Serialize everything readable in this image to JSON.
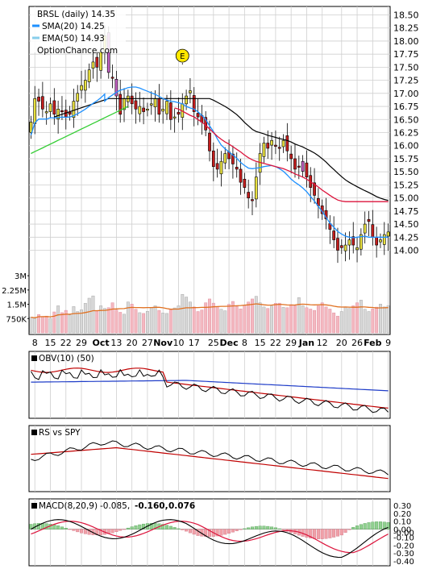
{
  "header": {
    "title": "BRSL (daily) 14.35",
    "legend": [
      {
        "label": "SMA(20) 14.25",
        "color": "#1e90ff"
      },
      {
        "label": "EMA(50) 14.93",
        "color": "#87ceeb"
      }
    ],
    "source": "OptionChance.com"
  },
  "colors": {
    "up_candle": "#e8e040",
    "down_candle": "#c41e1e",
    "purple_candle": "#c060c0",
    "sma20": "#1e90ff",
    "ema50_price": "#dc143c",
    "ema50_legend": "#87ceeb",
    "long_ma": "#000000",
    "green_ma": "#32cd32",
    "volume_up": "#d8d8d8",
    "volume_down": "#f4b8c0",
    "volume_ma": "#e07020",
    "obv": "#000000",
    "obv_ma": "#c00000",
    "obv_signal": "#1e3cc8",
    "macd_line": "#000000",
    "macd_signal": "#dc143c",
    "hist_pos": "#90d090",
    "hist_neg": "#f0a0a8"
  },
  "chart_data": [
    {
      "type": "candlestick",
      "title": "BRSL (daily) 14.35",
      "ylim": [
        13.7,
        18.6
      ],
      "price_ticks": [
        "18.50",
        "18.25",
        "18.00",
        "17.75",
        "17.50",
        "17.25",
        "17.00",
        "16.75",
        "16.50",
        "16.25",
        "16.00",
        "15.75",
        "15.50",
        "15.25",
        "15.00",
        "14.75",
        "14.50",
        "14.25",
        "14.00"
      ],
      "event_marker": "E",
      "close": [
        16.45,
        16.9,
        16.85,
        16.7,
        16.65,
        16.8,
        16.6,
        16.7,
        16.65,
        16.55,
        16.6,
        16.85,
        17.0,
        17.15,
        17.25,
        17.45,
        17.6,
        17.5,
        17.8,
        18.1,
        17.4,
        17.3,
        16.95,
        16.6,
        16.9,
        16.95,
        16.8,
        16.7,
        16.75,
        16.65,
        16.7,
        16.8,
        16.9,
        16.6,
        16.7,
        16.85,
        16.5,
        16.55,
        16.6,
        16.8,
        16.95,
        17.05,
        16.65,
        16.55,
        16.45,
        16.3,
        15.9,
        15.6,
        15.55,
        15.7,
        15.85,
        15.75,
        15.65,
        15.55,
        15.3,
        15.2,
        15.0,
        14.95,
        15.4,
        15.85,
        16.05,
        15.95,
        16.1,
        16.0,
        15.95,
        16.1,
        15.9,
        15.75,
        15.55,
        15.6,
        15.7,
        15.4,
        15.2,
        15.05,
        14.85,
        14.7,
        14.6,
        14.4,
        14.2,
        14.0,
        14.05,
        14.1,
        14.2,
        14.1,
        14.05,
        14.3,
        14.5,
        14.55,
        14.25,
        14.1,
        14.2,
        14.3,
        14.35
      ],
      "sma20": [
        null,
        null,
        null,
        null,
        null,
        null,
        null,
        null,
        null,
        null,
        null,
        null,
        null,
        null,
        null,
        null,
        null,
        null,
        null,
        16.85,
        16.92,
        16.97,
        17.02,
        17.06,
        17.08,
        17.11,
        17.12,
        17.12,
        17.1,
        17.07,
        17.04,
        17.01,
        16.98,
        16.94,
        16.9,
        16.87,
        16.85,
        16.84,
        16.82,
        16.8,
        16.75,
        16.72,
        16.7,
        16.65,
        16.58,
        16.5,
        16.38,
        16.27,
        16.13,
        16.01,
        15.94,
        15.88,
        15.82,
        15.76,
        15.68,
        15.62,
        15.57,
        15.56,
        15.57,
        15.58,
        15.6,
        15.61,
        15.62,
        15.6,
        15.56,
        15.51,
        15.44,
        15.36,
        15.3,
        15.25,
        15.19,
        15.12,
        15.03,
        14.94,
        14.84,
        14.74,
        14.63,
        14.52,
        14.44,
        14.36,
        14.31,
        14.27,
        14.25,
        14.24,
        14.25,
        14.26,
        14.27,
        14.25,
        14.25,
        14.25,
        14.25,
        14.25,
        14.25
      ],
      "ema50_red": [
        null,
        null,
        null,
        null,
        null,
        null,
        null,
        null,
        null,
        null,
        null,
        null,
        null,
        null,
        null,
        null,
        null,
        null,
        null,
        null,
        null,
        null,
        null,
        null,
        null,
        null,
        null,
        null,
        null,
        null,
        null,
        null,
        null,
        null,
        null,
        null,
        null,
        16.72,
        16.7,
        16.66,
        16.62,
        16.58,
        16.55,
        16.5,
        16.45,
        16.39,
        16.32,
        16.25,
        16.18,
        16.12,
        16.07,
        16.03,
        15.98,
        15.93,
        15.88,
        15.82,
        15.77,
        15.73,
        15.7,
        15.68,
        15.66,
        15.64,
        15.62,
        15.6,
        15.58,
        15.56,
        15.53,
        15.5,
        15.46,
        15.43,
        15.4,
        15.36,
        15.31,
        15.26,
        15.21,
        15.15,
        15.1,
        15.05,
        15.0,
        14.96,
        14.94,
        14.93,
        14.93,
        14.93,
        14.93,
        14.93,
        14.93,
        14.93,
        14.93,
        14.93,
        14.93,
        14.93,
        14.93
      ],
      "long_black": [
        null,
        null,
        null,
        null,
        null,
        null,
        null,
        null,
        null,
        null,
        null,
        null,
        null,
        null,
        null,
        null,
        null,
        null,
        null,
        null,
        null,
        null,
        null,
        null,
        null,
        null,
        null,
        null,
        null,
        null,
        null,
        null,
        null,
        null,
        null,
        null,
        null,
        null,
        null,
        null,
        null,
        null,
        null,
        null,
        null,
        null,
        null,
        null,
        null,
        null,
        null,
        null,
        null,
        null,
        null,
        null,
        null,
        null,
        null,
        null,
        null,
        null,
        null,
        null,
        null,
        null,
        null,
        null,
        null,
        null,
        null,
        null,
        null,
        null,
        null,
        null,
        null,
        null,
        null,
        null,
        null,
        null,
        null,
        null,
        null,
        null,
        null,
        null,
        null,
        null,
        null,
        null,
        null
      ],
      "volume_ticks": [
        "3M",
        "2.25M",
        "1.5M",
        "750K"
      ],
      "volume_k": [
        820,
        760,
        960,
        860,
        880,
        760,
        1100,
        1420,
        1060,
        1180,
        940,
        1380,
        1120,
        1210,
        1550,
        1820,
        1940,
        1150,
        1420,
        1280,
        1320,
        1580,
        1200,
        1080,
        980,
        1620,
        1510,
        1240,
        1060,
        1020,
        1130,
        1320,
        1420,
        1180,
        1040,
        1020,
        1260,
        1310,
        1420,
        2020,
        1880,
        1620,
        1360,
        1120,
        1200,
        1580,
        1780,
        1560,
        1360,
        1240,
        1160,
        1500,
        1650,
        1380,
        1260,
        1450,
        1620,
        1780,
        1920,
        1580,
        1360,
        1280,
        1410,
        1550,
        1560,
        1340,
        1320,
        1480,
        1430,
        1850,
        1420,
        1320,
        1250,
        1180,
        1420,
        1580,
        1360,
        1250,
        1050,
        880,
        1120,
        1360,
        1280,
        1420,
        1580,
        1720,
        1240,
        1120,
        1260,
        1350,
        1510,
        1360,
        1420
      ]
    }
  ],
  "x_axis": {
    "labels": [
      {
        "text": "8",
        "bold": false
      },
      {
        "text": "15",
        "bold": false
      },
      {
        "text": "22",
        "bold": false
      },
      {
        "text": "29",
        "bold": false
      },
      {
        "text": "Oct",
        "bold": true
      },
      {
        "text": "13",
        "bold": false
      },
      {
        "text": "20",
        "bold": false
      },
      {
        "text": "27",
        "bold": false
      },
      {
        "text": "Nov",
        "bold": true
      },
      {
        "text": "10",
        "bold": false
      },
      {
        "text": "17",
        "bold": false
      },
      {
        "text": "25",
        "bold": false
      },
      {
        "text": "Dec",
        "bold": true
      },
      {
        "text": "8",
        "bold": false
      },
      {
        "text": "15",
        "bold": false
      },
      {
        "text": "22",
        "bold": false
      },
      {
        "text": "29",
        "bold": false
      },
      {
        "text": "Jan",
        "bold": true
      },
      {
        "text": "12",
        "bold": false
      },
      {
        "text": "20",
        "bold": false
      },
      {
        "text": "26",
        "bold": false
      },
      {
        "text": "Feb",
        "bold": true
      },
      {
        "text": "9",
        "bold": false
      }
    ]
  },
  "obv_panel": {
    "label": "OBV(10) (50)"
  },
  "rs_panel": {
    "label": "RS vs SPY"
  },
  "macd_panel": {
    "label": "MACD(8,20,9)",
    "macd_value": "-0.085,",
    "signal_value": "-0.160,",
    "hist_value": "0.076",
    "ticks": [
      "0.30",
      "0.20",
      "0.10",
      "0.00",
      "-0.00",
      "-0.10",
      "-0.20",
      "-0.30",
      "-0.40"
    ]
  }
}
